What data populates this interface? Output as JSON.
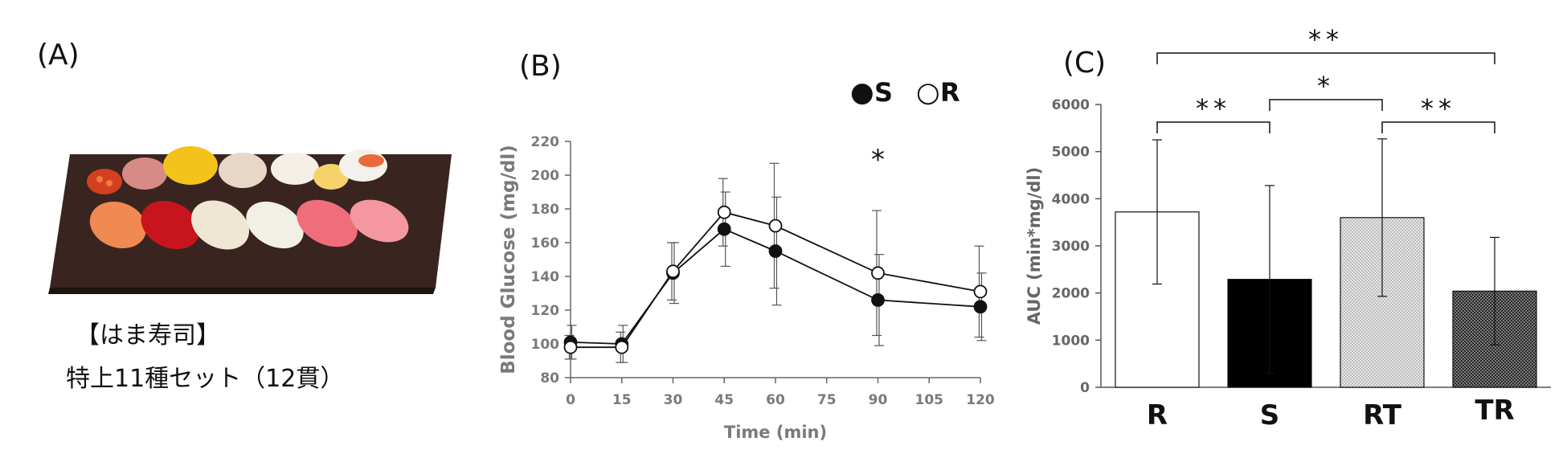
{
  "panelA": {
    "label": "(A)",
    "caption_line1": "【はま寿司】",
    "caption_line2": "特上11種セット（12貫）"
  },
  "panelB": {
    "label": "(B)"
  },
  "panelC": {
    "label": "(C)"
  },
  "chart_data": [
    {
      "type": "line",
      "title": "",
      "xlabel": "Time (min)",
      "ylabel": "Blood Glucose (mg/dl)",
      "x": [
        0,
        15,
        30,
        45,
        60,
        90,
        120
      ],
      "xticks": [
        0,
        15,
        30,
        45,
        60,
        75,
        90,
        105,
        120
      ],
      "xlim": [
        0,
        120
      ],
      "yticks": [
        80,
        100,
        120,
        140,
        160,
        180,
        200,
        220
      ],
      "ylim": [
        80,
        220
      ],
      "legend": [
        {
          "name": "S",
          "marker": "filled-circle",
          "symbol": "●"
        },
        {
          "name": "R",
          "marker": "open-circle",
          "symbol": "○"
        }
      ],
      "legend_position": "top-right",
      "series": [
        {
          "name": "S",
          "marker": "filled",
          "values": [
            101,
            100,
            142,
            168,
            155,
            126,
            122
          ],
          "errors": [
            10,
            11,
            18,
            22,
            32,
            27,
            20
          ]
        },
        {
          "name": "R",
          "marker": "open",
          "values": [
            98,
            98,
            143,
            178,
            170,
            142,
            131
          ],
          "errors": [
            7,
            9,
            17,
            20,
            37,
            37,
            27
          ]
        }
      ],
      "annotations": [
        {
          "x": 90,
          "text": "*"
        }
      ]
    },
    {
      "type": "bar",
      "title": "",
      "xlabel": "",
      "ylabel": "AUC (min*mg/dl)",
      "categories": [
        "R",
        "S",
        "RT",
        "TR"
      ],
      "fills": [
        "white",
        "black",
        "light-check",
        "dark-check"
      ],
      "values": [
        3720,
        2290,
        3600,
        2040
      ],
      "errors": [
        1530,
        1990,
        1670,
        1140
      ],
      "yticks": [
        0,
        1000,
        2000,
        3000,
        4000,
        5000,
        6000
      ],
      "ylim": [
        0,
        6000
      ],
      "significance": [
        {
          "from": "R",
          "to": "S",
          "label": "**"
        },
        {
          "from": "S",
          "to": "RT",
          "label": "*"
        },
        {
          "from": "RT",
          "to": "TR",
          "label": "**"
        },
        {
          "from": "R",
          "to": "TR",
          "label": "**"
        }
      ]
    }
  ]
}
